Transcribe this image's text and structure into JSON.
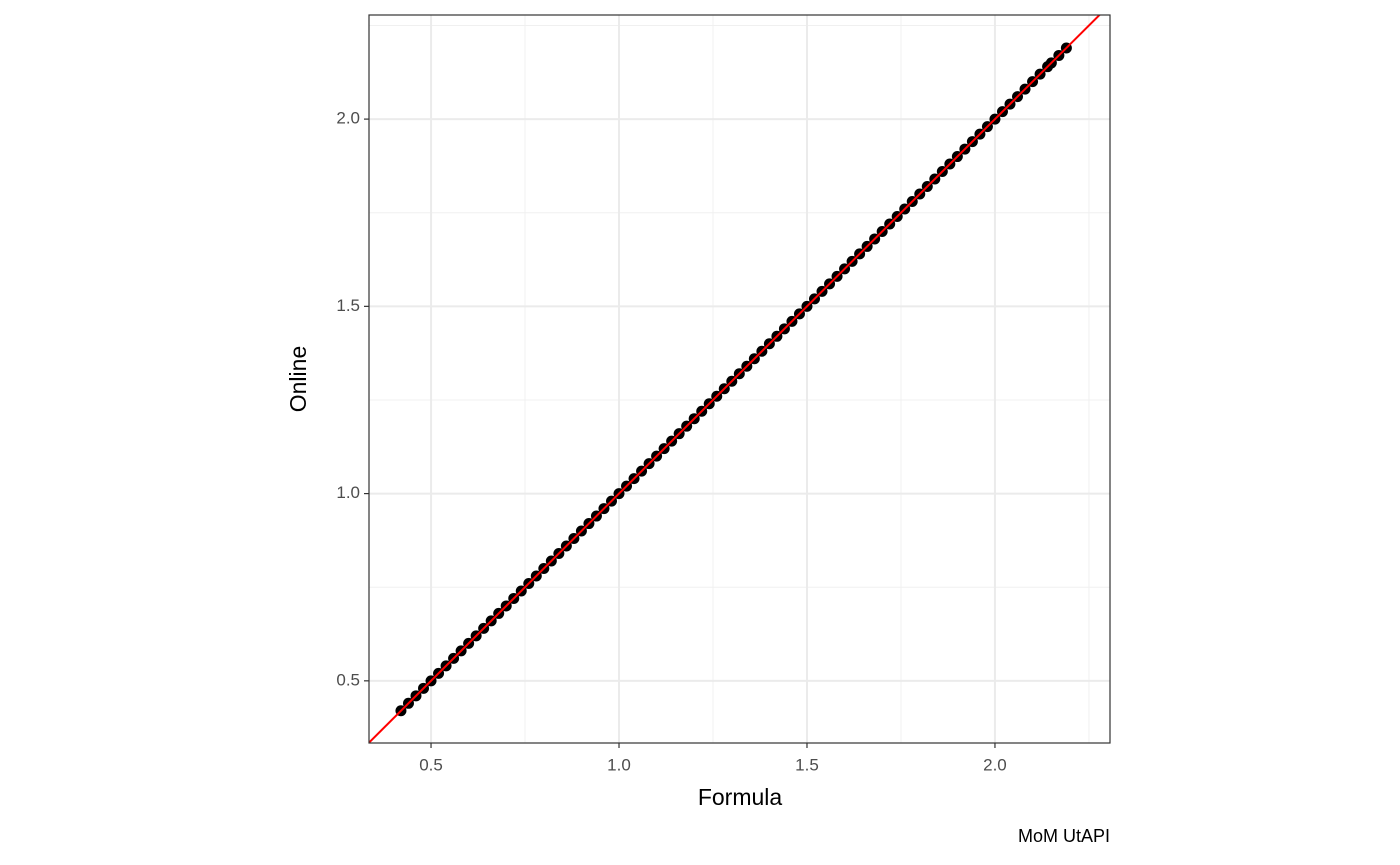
{
  "chart_data": {
    "type": "scatter",
    "x_label": "Formula",
    "y_label": "Online",
    "caption": "MoM UtAPI",
    "x": [
      0.42,
      0.44,
      0.46,
      0.48,
      0.5,
      0.52,
      0.54,
      0.56,
      0.58,
      0.6,
      0.62,
      0.64,
      0.66,
      0.68,
      0.7,
      0.72,
      0.74,
      0.76,
      0.78,
      0.8,
      0.82,
      0.84,
      0.86,
      0.88,
      0.9,
      0.92,
      0.94,
      0.96,
      0.98,
      1,
      1.02,
      1.04,
      1.06,
      1.08,
      1.1,
      1.12,
      1.14,
      1.16,
      1.18,
      1.2,
      1.22,
      1.24,
      1.26,
      1.28,
      1.3,
      1.32,
      1.34,
      1.36,
      1.38,
      1.4,
      1.42,
      1.44,
      1.46,
      1.48,
      1.5,
      1.52,
      1.54,
      1.56,
      1.58,
      1.6,
      1.62,
      1.64,
      1.66,
      1.68,
      1.7,
      1.72,
      1.74,
      1.76,
      1.78,
      1.8,
      1.82,
      1.84,
      1.86,
      1.88,
      1.9,
      1.92,
      1.94,
      1.96,
      1.98,
      2,
      2.02,
      2.04,
      2.06,
      2.08,
      2.1,
      2.12,
      2.14,
      2.15,
      2.17,
      2.19
    ],
    "values": [
      0.42,
      0.44,
      0.46,
      0.48,
      0.5,
      0.52,
      0.54,
      0.56,
      0.58,
      0.6,
      0.62,
      0.64,
      0.66,
      0.68,
      0.7,
      0.72,
      0.74,
      0.76,
      0.78,
      0.8,
      0.82,
      0.84,
      0.86,
      0.88,
      0.9,
      0.92,
      0.94,
      0.96,
      0.98,
      1,
      1.02,
      1.04,
      1.06,
      1.08,
      1.1,
      1.12,
      1.14,
      1.16,
      1.18,
      1.2,
      1.22,
      1.24,
      1.26,
      1.28,
      1.3,
      1.32,
      1.34,
      1.36,
      1.38,
      1.4,
      1.42,
      1.44,
      1.46,
      1.48,
      1.5,
      1.52,
      1.54,
      1.56,
      1.58,
      1.6,
      1.62,
      1.64,
      1.66,
      1.68,
      1.7,
      1.72,
      1.74,
      1.76,
      1.78,
      1.8,
      1.82,
      1.84,
      1.86,
      1.88,
      1.9,
      1.92,
      1.94,
      1.96,
      1.98,
      2,
      2.02,
      2.04,
      2.06,
      2.08,
      2.1,
      2.12,
      2.14,
      2.15,
      2.17,
      2.19
    ],
    "color": "#000000",
    "xlim": [
      0.335,
      2.306
    ],
    "ylim": [
      0.334,
      2.278
    ],
    "xticks": [
      0.5,
      {
        "value": 1,
        "label": "1.0"
      },
      1.5,
      {
        "value": 2,
        "label": "2.0"
      }
    ],
    "yticks": [
      0.5,
      {
        "value": 1,
        "label": "1.0"
      },
      1.5,
      {
        "value": 2,
        "label": "2.0"
      }
    ],
    "x_minor_grid": [
      0.75,
      1.25,
      1.75,
      2.25
    ],
    "y_minor_grid": [
      0.75,
      1.25,
      1.75,
      2.25
    ],
    "grid": true,
    "reference_line": {
      "slope": 1,
      "intercept": 0,
      "color": "#ff0000"
    }
  }
}
